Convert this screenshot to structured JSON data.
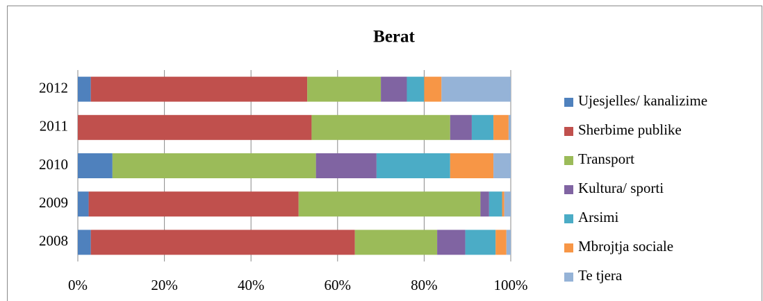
{
  "chart_data": {
    "type": "stacked_bar_horizontal",
    "title": "Berat",
    "categories": [
      "2012",
      "2011",
      "2010",
      "2009",
      "2008"
    ],
    "series": [
      {
        "name": "Ujesjelles/ kanalizime",
        "color": "#4f81bd",
        "values": [
          3,
          0,
          8,
          2.5,
          3
        ]
      },
      {
        "name": "Sherbime publike",
        "color": "#c0504d",
        "values": [
          50,
          54,
          0,
          48.5,
          61
        ]
      },
      {
        "name": "Transport",
        "color": "#9bbb59",
        "values": [
          17,
          32,
          47,
          42,
          19
        ]
      },
      {
        "name": "Kultura/ sporti",
        "color": "#8064a2",
        "values": [
          6,
          5,
          14,
          2,
          6.5
        ]
      },
      {
        "name": "Arsimi",
        "color": "#4bacc6",
        "values": [
          4,
          5,
          17,
          3,
          7
        ]
      },
      {
        "name": "Mbrojtja sociale",
        "color": "#f79646",
        "values": [
          4,
          3.5,
          10,
          0.5,
          2.5
        ]
      },
      {
        "name": "Te tjera",
        "color": "#95b3d7",
        "values": [
          16,
          0.5,
          4,
          1.5,
          1
        ]
      }
    ],
    "xlim": [
      0,
      100
    ],
    "xticks": [
      {
        "value": 0,
        "label": "0%"
      },
      {
        "value": 20,
        "label": "20%"
      },
      {
        "value": 40,
        "label": "40%"
      },
      {
        "value": 60,
        "label": "60%"
      },
      {
        "value": 80,
        "label": "80%"
      },
      {
        "value": 100,
        "label": "100%"
      }
    ],
    "grid": true,
    "legend": "right"
  }
}
